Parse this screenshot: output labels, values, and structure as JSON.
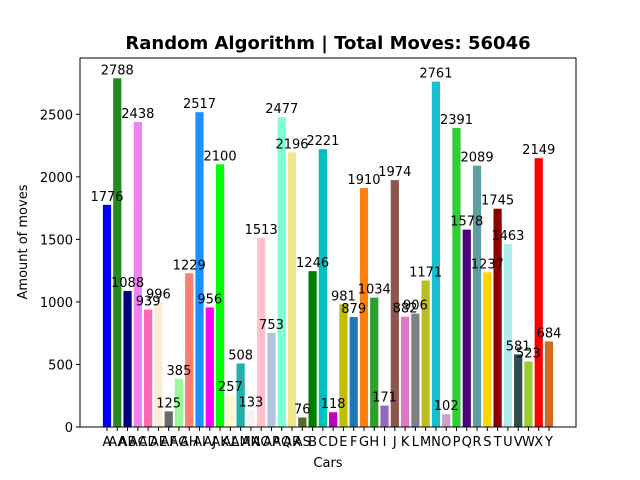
{
  "chart_data": {
    "type": "bar",
    "title": "Random Algorithm | Total Moves: 56046",
    "xlabel": "Cars",
    "ylabel": "Amount of moves",
    "ylim": [
      0,
      2950
    ],
    "yticks": [
      0,
      500,
      1000,
      1500,
      2000,
      2500
    ],
    "grid": false,
    "legend": "none",
    "categories": [
      "A",
      "AA",
      "AB",
      "AC",
      "AD",
      "AE",
      "AF",
      "AG",
      "AH",
      "AI",
      "AJ",
      "AK",
      "AL",
      "AM",
      "AN",
      "AO",
      "AP",
      "AQ",
      "AR",
      "AS",
      "B",
      "C",
      "D",
      "E",
      "F",
      "G",
      "H",
      "I",
      "J",
      "K",
      "L",
      "M",
      "N",
      "O",
      "P",
      "Q",
      "R",
      "S",
      "T",
      "U",
      "V",
      "W",
      "X",
      "Y"
    ],
    "values": [
      1776,
      2788,
      1088,
      2438,
      939,
      996,
      125,
      385,
      1229,
      2517,
      956,
      2100,
      257,
      508,
      133,
      1513,
      753,
      2477,
      2196,
      76,
      1246,
      2221,
      118,
      981,
      879,
      1910,
      1034,
      171,
      1974,
      882,
      906,
      1171,
      2761,
      102,
      2391,
      1578,
      2089,
      1237,
      1745,
      1463,
      581,
      523,
      2149,
      684
    ],
    "colors": [
      "#0000ff",
      "#228b22",
      "#000080",
      "#ee82ee",
      "#ff69b4",
      "#faebd7",
      "#696969",
      "#98fb98",
      "#fa8072",
      "#1e90ff",
      "#ff00ff",
      "#00ff00",
      "#fffacd",
      "#20b2aa",
      "#f5f5f5",
      "#ffc0cb",
      "#b0c4de",
      "#7fffd4",
      "#f0e68c",
      "#556b2f",
      "#008000",
      "#00bfbf",
      "#bf00bf",
      "#bfbf00",
      "#1f77b4",
      "#ff7f0e",
      "#2ca02c",
      "#9467bd",
      "#8c564b",
      "#e377c2",
      "#7f7f7f",
      "#bcbd22",
      "#17becf",
      "#c8a2c8",
      "#32cd32",
      "#4b0082",
      "#5f9ea0",
      "#ffd700",
      "#8b0000",
      "#afeeee",
      "#2f4f4f",
      "#9acd32",
      "#ff0000",
      "#d2691e"
    ]
  }
}
